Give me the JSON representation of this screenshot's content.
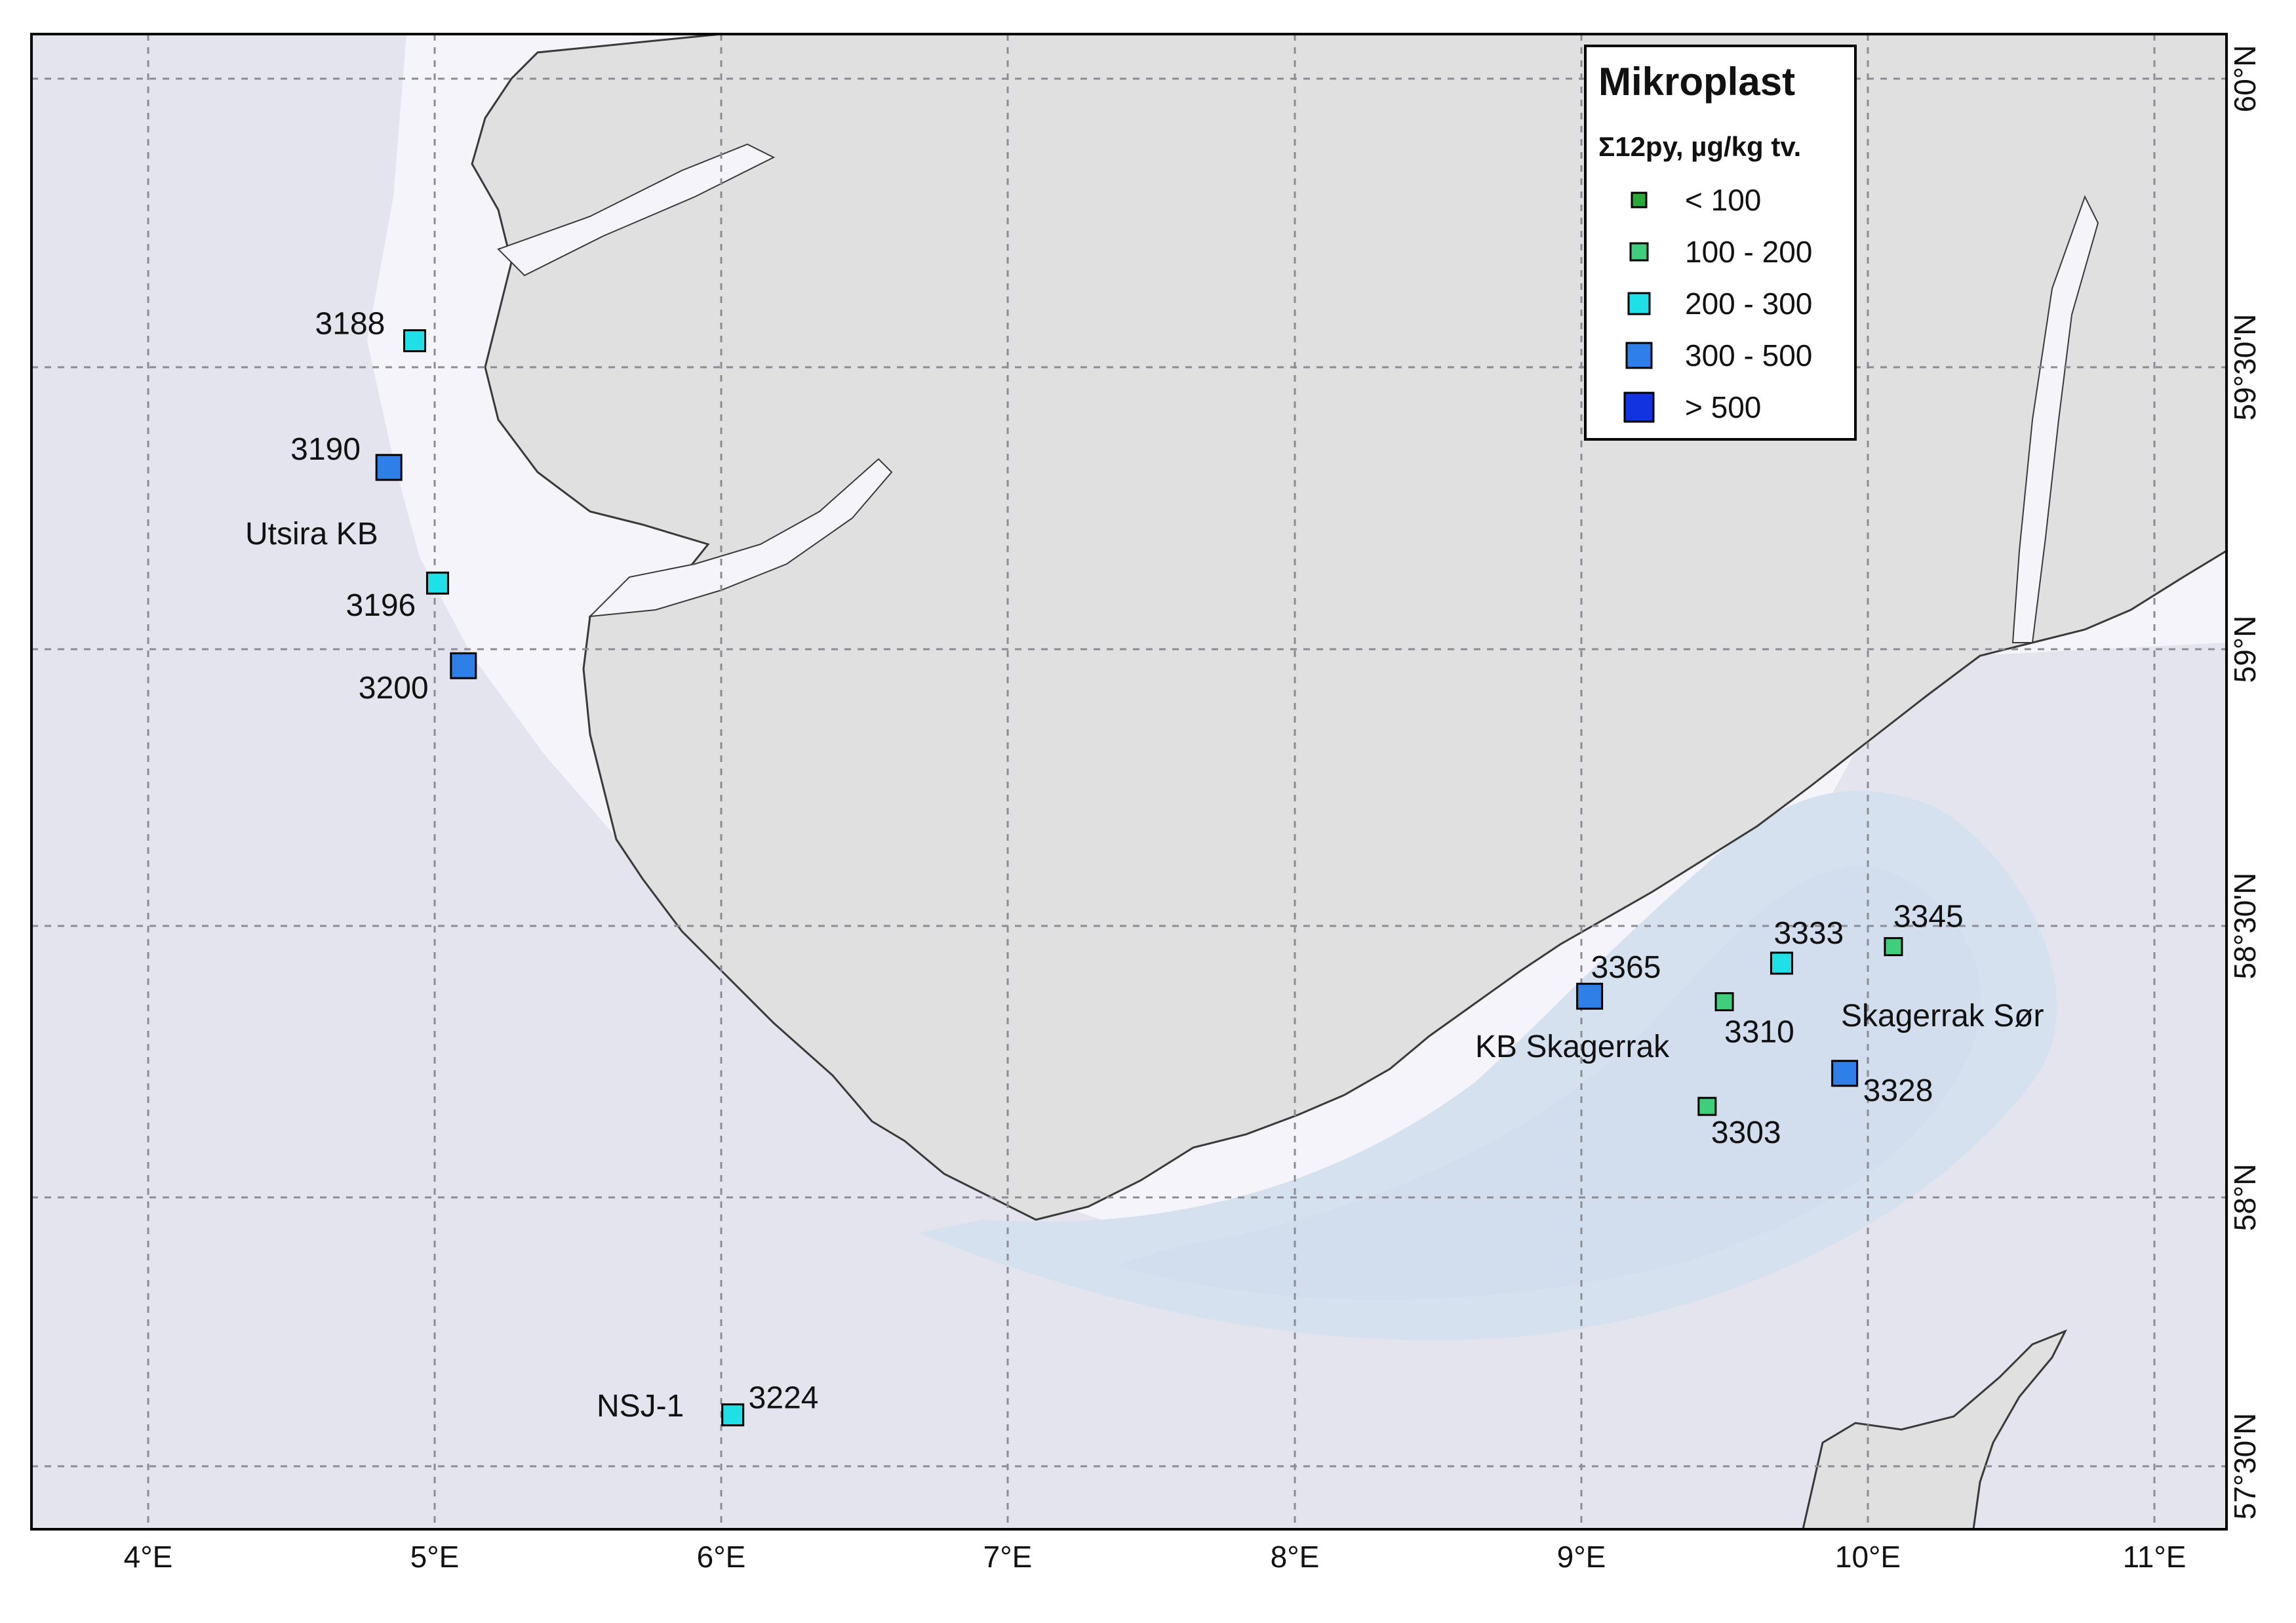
{
  "legend": {
    "title": "Mikroplast",
    "subtitle": "Σ12py, µg/kg tv.",
    "classes": [
      {
        "label": "< 100",
        "color": "#2aa83a"
      },
      {
        "label": "100 - 200",
        "color": "#3fcf7c"
      },
      {
        "label": "200 - 300",
        "color": "#1fe0e6"
      },
      {
        "label": "300 - 500",
        "color": "#2f7fe8"
      },
      {
        "label": "> 500",
        "color": "#1233e0"
      }
    ]
  },
  "axes": {
    "longitude_labels": [
      "4°E",
      "5°E",
      "6°E",
      "7°E",
      "8°E",
      "9°E",
      "10°E",
      "11°E"
    ],
    "latitude_labels": [
      "60°N",
      "59°30'N",
      "59°N",
      "58°30'N",
      "58°N",
      "57°30'N"
    ]
  },
  "area_labels": [
    {
      "id": "utsira",
      "text": "Utsira KB"
    },
    {
      "id": "kb-skagerrak",
      "text": "KB Skagerrak"
    },
    {
      "id": "skagerrak-sor",
      "text": "Skagerrak Sør"
    },
    {
      "id": "nsj",
      "text": "NSJ-1"
    }
  ],
  "stations": [
    {
      "id": "3188",
      "lon": 4.93,
      "lat": 59.56,
      "class": 2
    },
    {
      "id": "3190",
      "lon": 4.84,
      "lat": 59.33,
      "class": 3
    },
    {
      "id": "3196",
      "lon": 5.01,
      "lat": 59.12,
      "class": 2
    },
    {
      "id": "3200",
      "lon": 5.1,
      "lat": 58.97,
      "class": 3
    },
    {
      "id": "3224",
      "lon": 6.04,
      "lat": 57.61,
      "class": 2
    },
    {
      "id": "3365",
      "lon": 9.03,
      "lat": 58.37,
      "class": 3
    },
    {
      "id": "3310",
      "lon": 9.5,
      "lat": 58.36,
      "class": 1
    },
    {
      "id": "3333",
      "lon": 9.7,
      "lat": 58.43,
      "class": 2
    },
    {
      "id": "3345",
      "lon": 10.09,
      "lat": 58.46,
      "class": 1
    },
    {
      "id": "3328",
      "lon": 9.92,
      "lat": 58.23,
      "class": 3
    },
    {
      "id": "3303",
      "lon": 9.44,
      "lat": 58.17,
      "class": 1
    }
  ],
  "colors": {
    "land": "#e0e0e0",
    "sea_light": "#f4f4fa",
    "sea_mid": "#e4e4ef",
    "sea_deep": "#d6e1ef",
    "sea_deepest": "#d8e4f0"
  }
}
